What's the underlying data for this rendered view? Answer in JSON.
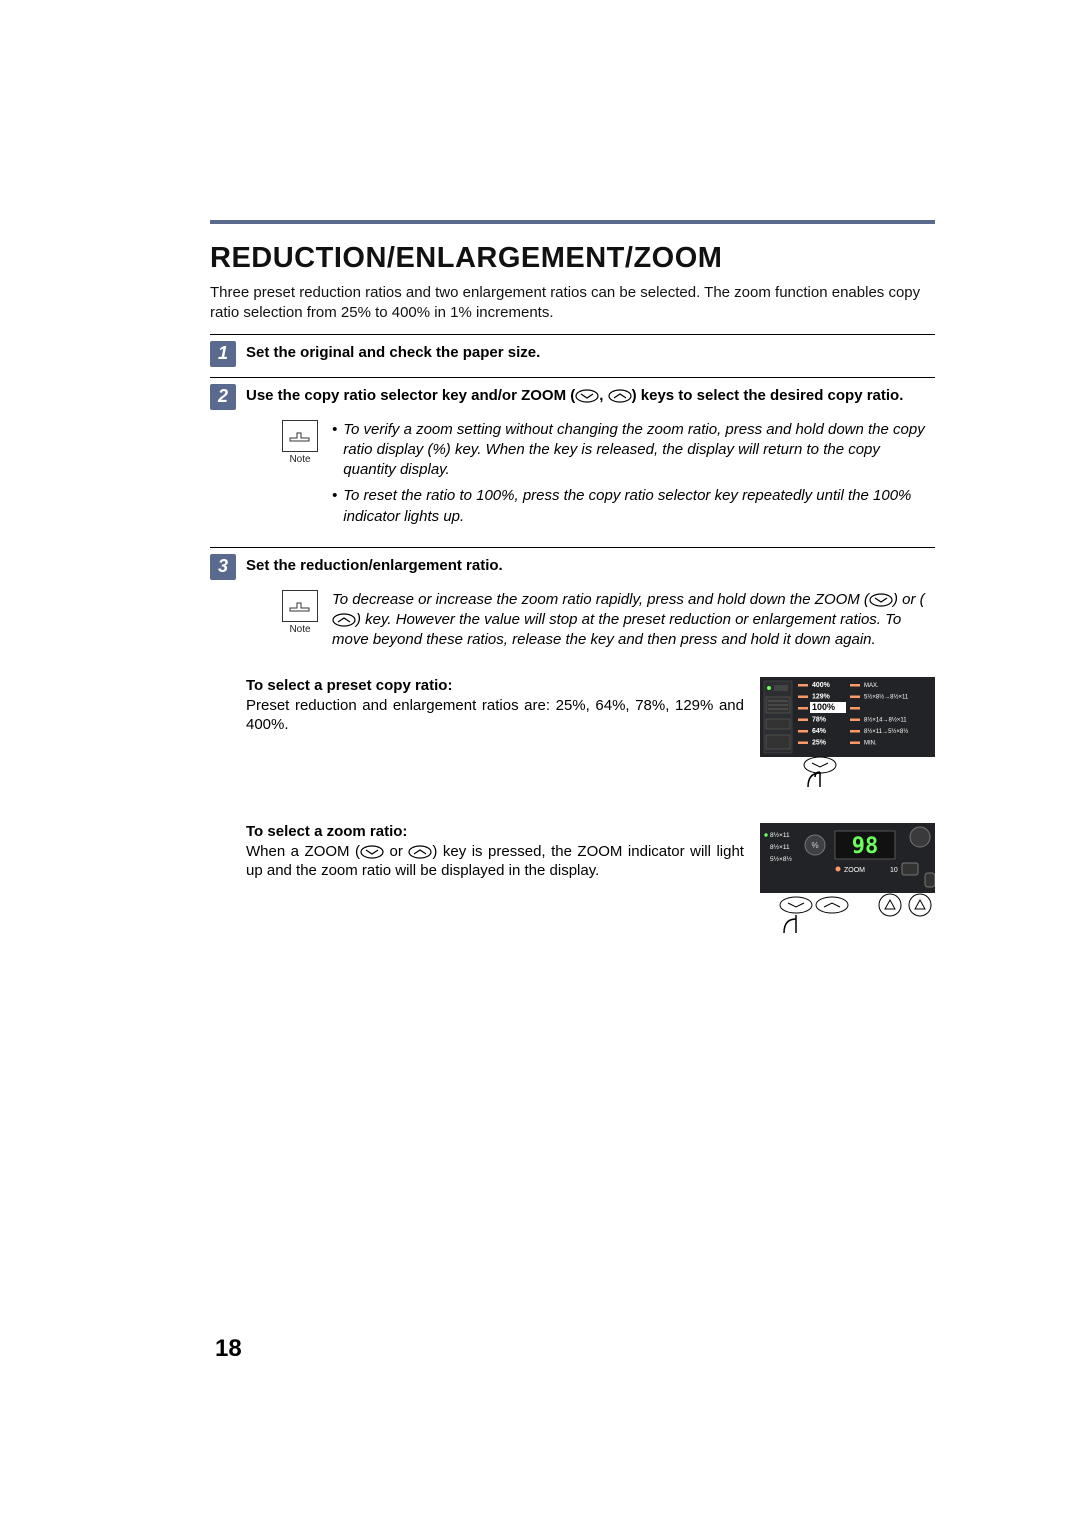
{
  "title": "REDUCTION/ENLARGEMENT/ZOOM",
  "intro": "Three preset reduction ratios and two enlargement ratios can be selected. The zoom function enables copy ratio selection from 25% to 400% in 1% increments.",
  "steps": {
    "s1": {
      "num": "1",
      "text": "Set the original and check the paper size."
    },
    "s2": {
      "num": "2",
      "text_a": "Use the copy ratio selector key and/or ZOOM (",
      "text_b": ", ",
      "text_c": ") keys to select the desired copy ratio."
    },
    "s3": {
      "num": "3",
      "text": "Set the reduction/enlargement ratio."
    }
  },
  "note_label": "Note",
  "note1": {
    "b1": "To verify a zoom setting without changing the zoom ratio, press and hold down the copy ratio display (%) key. When the key is released, the display will return to the copy quantity display.",
    "b2": "To reset the ratio to 100%, press the copy ratio selector key repeatedly until the 100% indicator lights up."
  },
  "note2": {
    "t1": "To decrease or increase the zoom ratio rapidly, press and hold down the ZOOM (",
    "t2": ") or (",
    "t3": ") key. However the value will stop at the preset reduction or enlargement ratios. To move beyond these ratios, release the key and then press and hold it down again."
  },
  "preset": {
    "heading": "To select a preset copy ratio:",
    "body": "Preset reduction and enlargement ratios are: 25%, 64%, 78%, 129% and 400%."
  },
  "zoom_sel": {
    "heading": "To select a zoom ratio:",
    "t1": "When a ZOOM (",
    "t2": " or ",
    "t3": ") key is pressed, the ZOOM indicator will light up and the zoom ratio will be displayed in the display."
  },
  "ratio_panel": {
    "rows": [
      {
        "pct": "400%",
        "label": "MAX."
      },
      {
        "pct": "129%",
        "label": "5½×8½→8½×11"
      },
      {
        "pct": "100%",
        "label": ""
      },
      {
        "pct": "78%",
        "label": "8½×14→8½×11"
      },
      {
        "pct": "64%",
        "label": "8½×11→5½×8½"
      },
      {
        "pct": "25%",
        "label": "MIN."
      }
    ],
    "highlight_index": 2
  },
  "zoom_panel": {
    "display": "98",
    "zoom_label": "ZOOM",
    "left_labels": [
      "8½×11",
      "8½×11",
      "5½×8½"
    ],
    "ten_label": "10"
  },
  "page_number": "18",
  "colors": {
    "accent": "#5a6a8f",
    "panel_bg": "#222326",
    "panel_text": "#ffffff",
    "panel_accent": "#ff9966",
    "led_green": "#6bff5e"
  }
}
